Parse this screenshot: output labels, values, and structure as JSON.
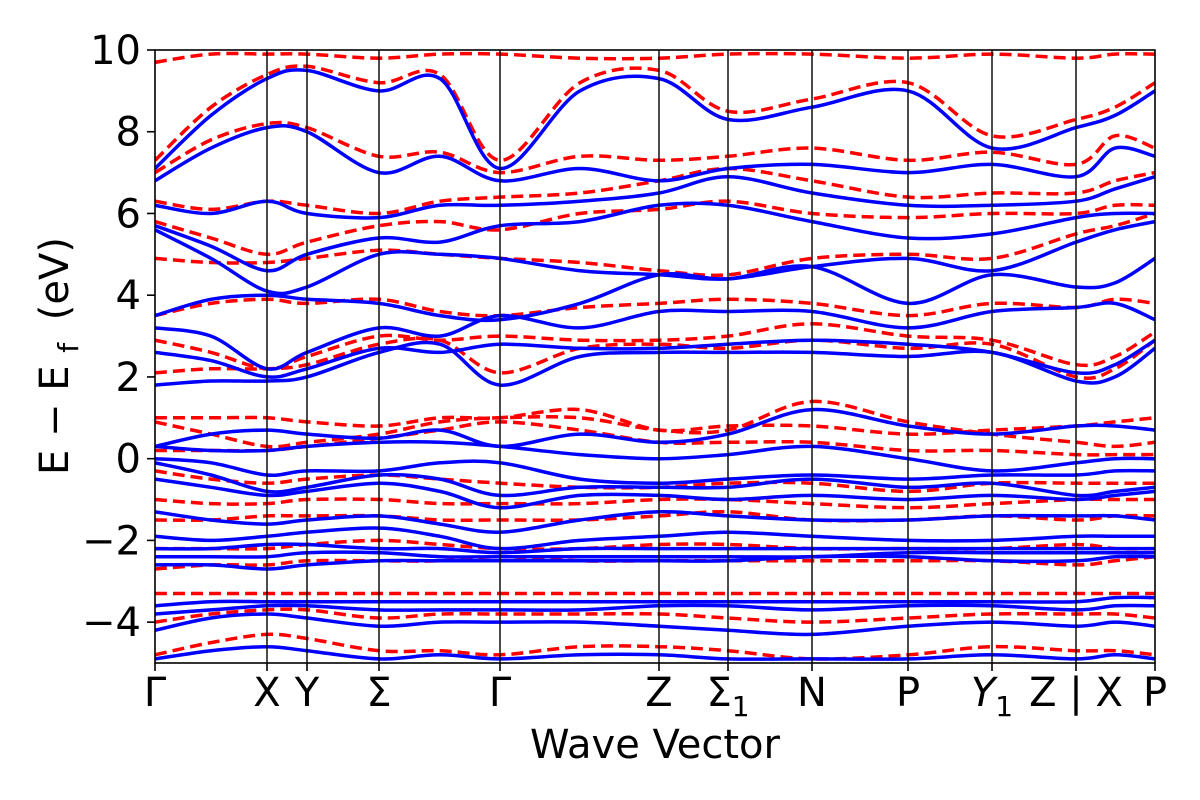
{
  "chart_data": {
    "type": "line",
    "xlabel": "Wave Vector",
    "ylabel": "E − E",
    "ylabel_sub": "f",
    "ylabel_unit": "(eV)",
    "ylim": [
      -5,
      10
    ],
    "yticks": [
      -4,
      -2,
      0,
      2,
      4,
      6,
      8,
      10
    ],
    "ytick_labels": [
      "−4",
      "−2",
      "0",
      "2",
      "4",
      "6",
      "8",
      "10"
    ],
    "x_range": [
      0,
      1
    ],
    "kpoints": [
      {
        "label": "Γ",
        "x": 0.0
      },
      {
        "label": "X",
        "x": 0.112
      },
      {
        "label": "Y",
        "x": 0.152
      },
      {
        "label": "Σ",
        "x": 0.224
      },
      {
        "label": "Γ",
        "x": 0.345
      },
      {
        "label": "Z",
        "x": 0.504
      },
      {
        "label": "Σ",
        "sub": "1",
        "x": 0.573
      },
      {
        "label": "N",
        "x": 0.657
      },
      {
        "label": "P",
        "x": 0.753
      },
      {
        "label": "Y",
        "sub": "1",
        "italic": true,
        "x": 0.837
      },
      {
        "label": "Z | X",
        "x": 0.921
      },
      {
        "label": "P",
        "x": 1.0
      }
    ],
    "grid": false,
    "series": [
      {
        "style": "solid",
        "color": "#0000ff"
      },
      {
        "style": "dashed",
        "color": "#ff0000"
      }
    ],
    "bands": {
      "note_values_in_eV_at_x_nodes": true,
      "x": [
        0,
        0.056,
        0.112,
        0.152,
        0.224,
        0.285,
        0.345,
        0.425,
        0.504,
        0.573,
        0.657,
        0.753,
        0.837,
        0.921,
        0.96,
        1.0
      ],
      "solid": [
        [
          -4.9,
          -4.7,
          -4.6,
          -4.7,
          -4.9,
          -4.8,
          -4.9,
          -4.8,
          -4.8,
          -4.9,
          -4.9,
          -4.9,
          -4.8,
          -4.9,
          -4.8,
          -4.9
        ],
        [
          -4.2,
          -3.9,
          -3.8,
          -3.9,
          -4.1,
          -4.0,
          -4.0,
          -4.0,
          -4.1,
          -4.2,
          -4.3,
          -4.1,
          -4.0,
          -4.1,
          -4.0,
          -4.1
        ],
        [
          -3.8,
          -3.7,
          -3.6,
          -3.6,
          -3.7,
          -3.7,
          -3.7,
          -3.7,
          -3.6,
          -3.6,
          -3.7,
          -3.6,
          -3.6,
          -3.7,
          -3.6,
          -3.6
        ],
        [
          -3.6,
          -3.5,
          -3.5,
          -3.5,
          -3.5,
          -3.5,
          -3.5,
          -3.5,
          -3.5,
          -3.5,
          -3.5,
          -3.5,
          -3.5,
          -3.5,
          -3.4,
          -3.4
        ],
        [
          -2.6,
          -2.6,
          -2.7,
          -2.6,
          -2.5,
          -2.5,
          -2.5,
          -2.5,
          -2.5,
          -2.5,
          -2.4,
          -2.4,
          -2.5,
          -2.5,
          -2.4,
          -2.4
        ],
        [
          -2.4,
          -2.4,
          -2.4,
          -2.3,
          -2.3,
          -2.4,
          -2.4,
          -2.4,
          -2.4,
          -2.4,
          -2.4,
          -2.3,
          -2.3,
          -2.3,
          -2.3,
          -2.3
        ],
        [
          -2.2,
          -2.2,
          -2.1,
          -2.1,
          -2.2,
          -2.2,
          -2.3,
          -2.2,
          -2.2,
          -2.2,
          -2.2,
          -2.2,
          -2.2,
          -2.2,
          -2.2,
          -2.2
        ],
        [
          -1.9,
          -2.0,
          -1.9,
          -1.8,
          -1.7,
          -1.9,
          -2.2,
          -2.0,
          -1.9,
          -1.8,
          -1.9,
          -2.0,
          -2.0,
          -1.9,
          -1.9,
          -1.9
        ],
        [
          -1.3,
          -1.5,
          -1.6,
          -1.5,
          -1.4,
          -1.6,
          -1.8,
          -1.5,
          -1.3,
          -1.4,
          -1.5,
          -1.5,
          -1.4,
          -1.4,
          -1.4,
          -1.5
        ],
        [
          -0.5,
          -0.7,
          -0.9,
          -0.8,
          -0.6,
          -0.8,
          -1.2,
          -0.9,
          -0.9,
          -1.0,
          -0.9,
          -1.0,
          -0.9,
          -1.0,
          -0.9,
          -0.8
        ],
        [
          -0.1,
          -0.4,
          -0.8,
          -0.7,
          -0.4,
          -0.5,
          -0.9,
          -0.7,
          -0.7,
          -0.7,
          -0.5,
          -0.7,
          -0.6,
          -0.9,
          -0.8,
          -0.7
        ],
        [
          0.0,
          -0.1,
          -0.4,
          -0.3,
          -0.3,
          -0.1,
          -0.1,
          -0.5,
          -0.6,
          -0.5,
          -0.4,
          -0.5,
          -0.4,
          -0.4,
          -0.3,
          -0.3
        ],
        [
          0.3,
          0.2,
          0.2,
          0.3,
          0.4,
          0.4,
          0.3,
          0.1,
          0.0,
          0.1,
          0.3,
          0.0,
          -0.3,
          -0.1,
          0.0,
          0.0
        ],
        [
          0.3,
          0.6,
          0.7,
          0.6,
          0.5,
          0.7,
          0.3,
          0.6,
          0.4,
          0.6,
          1.2,
          0.8,
          0.6,
          0.8,
          0.8,
          0.7
        ],
        [
          1.8,
          1.9,
          1.9,
          2.0,
          2.6,
          2.8,
          1.8,
          2.5,
          2.6,
          2.6,
          2.6,
          2.5,
          2.6,
          1.9,
          2.0,
          2.7
        ],
        [
          2.6,
          2.4,
          2.0,
          2.2,
          2.7,
          2.6,
          2.8,
          2.7,
          2.7,
          2.8,
          2.9,
          2.8,
          2.6,
          2.1,
          2.3,
          2.9
        ],
        [
          3.2,
          3.0,
          2.2,
          2.6,
          3.2,
          3.0,
          3.5,
          3.2,
          3.6,
          3.6,
          3.6,
          3.2,
          3.6,
          3.7,
          3.8,
          3.4
        ],
        [
          3.5,
          3.9,
          4.0,
          3.9,
          3.8,
          3.5,
          3.4,
          3.8,
          4.5,
          4.4,
          4.7,
          3.8,
          4.5,
          4.2,
          4.3,
          4.9
        ],
        [
          5.6,
          4.9,
          4.1,
          4.2,
          5.0,
          5.0,
          4.9,
          4.6,
          4.5,
          4.4,
          4.7,
          4.9,
          4.6,
          5.3,
          5.6,
          5.8
        ],
        [
          5.7,
          5.2,
          4.6,
          5.0,
          5.4,
          5.3,
          5.7,
          5.8,
          6.2,
          6.2,
          5.8,
          5.4,
          5.5,
          5.9,
          6.0,
          6.0
        ],
        [
          6.2,
          6.0,
          6.3,
          6.0,
          5.9,
          6.2,
          6.2,
          6.3,
          6.5,
          6.9,
          6.5,
          6.2,
          6.2,
          6.3,
          6.6,
          6.9
        ],
        [
          6.8,
          7.6,
          8.1,
          8.0,
          7.0,
          7.4,
          6.8,
          7.1,
          6.8,
          7.1,
          7.2,
          7.0,
          7.2,
          6.9,
          7.6,
          7.4
        ],
        [
          7.1,
          8.4,
          9.3,
          9.5,
          9.0,
          9.3,
          7.1,
          9.0,
          9.3,
          8.3,
          8.6,
          9.0,
          7.6,
          8.1,
          8.4,
          9.0
        ]
      ],
      "dashed": [
        [
          -4.8,
          -4.5,
          -4.3,
          -4.4,
          -4.7,
          -4.7,
          -4.8,
          -4.6,
          -4.6,
          -4.7,
          -4.9,
          -4.8,
          -4.6,
          -4.7,
          -4.7,
          -4.8
        ],
        [
          -4.0,
          -3.8,
          -3.7,
          -3.7,
          -3.9,
          -3.8,
          -3.8,
          -3.8,
          -3.8,
          -3.9,
          -4.0,
          -3.9,
          -3.8,
          -3.8,
          -3.8,
          -3.9
        ],
        [
          -3.3,
          -3.3,
          -3.3,
          -3.3,
          -3.3,
          -3.3,
          -3.3,
          -3.3,
          -3.3,
          -3.3,
          -3.3,
          -3.3,
          -3.3,
          -3.3,
          -3.3,
          -3.3
        ],
        [
          -2.7,
          -2.6,
          -2.6,
          -2.5,
          -2.5,
          -2.5,
          -2.4,
          -2.5,
          -2.5,
          -2.5,
          -2.5,
          -2.5,
          -2.5,
          -2.6,
          -2.5,
          -2.4
        ],
        [
          -2.2,
          -2.2,
          -2.2,
          -2.1,
          -2.0,
          -2.1,
          -2.2,
          -2.2,
          -2.1,
          -2.1,
          -2.2,
          -2.2,
          -2.2,
          -2.1,
          -2.2,
          -2.2
        ],
        [
          -1.5,
          -1.5,
          -1.4,
          -1.4,
          -1.4,
          -1.5,
          -1.5,
          -1.5,
          -1.4,
          -1.3,
          -1.5,
          -1.5,
          -1.4,
          -1.5,
          -1.4,
          -1.4
        ],
        [
          -1.0,
          -1.1,
          -1.1,
          -1.0,
          -1.0,
          -1.1,
          -1.1,
          -1.1,
          -1.0,
          -1.0,
          -1.1,
          -1.2,
          -1.1,
          -1.0,
          -1.0,
          -1.0
        ],
        [
          -0.3,
          -0.5,
          -0.6,
          -0.5,
          -0.4,
          -0.5,
          -0.6,
          -0.7,
          -0.7,
          -0.6,
          -0.6,
          -0.8,
          -0.6,
          -0.6,
          -0.6,
          -0.6
        ],
        [
          0.2,
          0.2,
          0.2,
          0.3,
          0.5,
          0.7,
          0.9,
          0.7,
          0.4,
          0.4,
          0.4,
          0.2,
          0.2,
          0.1,
          0.1,
          0.1
        ],
        [
          0.9,
          0.6,
          0.3,
          0.4,
          0.6,
          0.9,
          1.0,
          1.0,
          0.7,
          0.7,
          1.4,
          0.9,
          0.6,
          0.4,
          0.3,
          0.4
        ],
        [
          1.0,
          1.0,
          1.0,
          0.9,
          0.8,
          1.0,
          1.0,
          1.2,
          0.7,
          0.8,
          0.8,
          0.6,
          0.7,
          0.8,
          0.9,
          1.0
        ],
        [
          2.1,
          2.2,
          2.2,
          2.3,
          2.8,
          2.9,
          2.1,
          2.7,
          2.8,
          2.7,
          2.9,
          2.7,
          2.8,
          2.0,
          2.2,
          2.9
        ],
        [
          2.9,
          2.6,
          2.2,
          2.5,
          3.0,
          2.9,
          3.0,
          2.9,
          2.9,
          3.0,
          3.3,
          3.0,
          2.9,
          2.3,
          2.5,
          3.1
        ],
        [
          3.5,
          3.8,
          3.9,
          3.8,
          3.9,
          3.6,
          3.5,
          3.7,
          3.8,
          3.9,
          3.8,
          3.5,
          3.8,
          3.7,
          3.9,
          3.8
        ],
        [
          4.9,
          4.8,
          4.8,
          4.9,
          5.1,
          5.0,
          4.9,
          4.8,
          4.6,
          4.5,
          4.9,
          5.0,
          4.9,
          5.5,
          5.7,
          6.0
        ],
        [
          5.8,
          5.4,
          5.0,
          5.3,
          5.7,
          5.8,
          5.6,
          6.0,
          6.1,
          6.3,
          6.0,
          5.9,
          6.0,
          6.0,
          6.2,
          6.2
        ],
        [
          6.3,
          6.1,
          6.3,
          6.2,
          6.0,
          6.3,
          6.4,
          6.5,
          6.8,
          7.1,
          6.8,
          6.4,
          6.5,
          6.5,
          6.8,
          7.0
        ],
        [
          7.0,
          7.8,
          8.2,
          8.1,
          7.4,
          7.5,
          7.0,
          7.4,
          7.3,
          7.4,
          7.6,
          7.3,
          7.5,
          7.2,
          7.9,
          7.6
        ],
        [
          7.3,
          8.6,
          9.4,
          9.6,
          9.2,
          9.4,
          7.3,
          9.2,
          9.5,
          8.5,
          8.8,
          9.2,
          7.9,
          8.3,
          8.6,
          9.2
        ],
        [
          9.7,
          9.9,
          9.9,
          9.9,
          9.8,
          9.9,
          9.9,
          9.8,
          9.8,
          9.9,
          9.9,
          9.8,
          9.9,
          9.8,
          9.9,
          9.9
        ]
      ]
    }
  }
}
